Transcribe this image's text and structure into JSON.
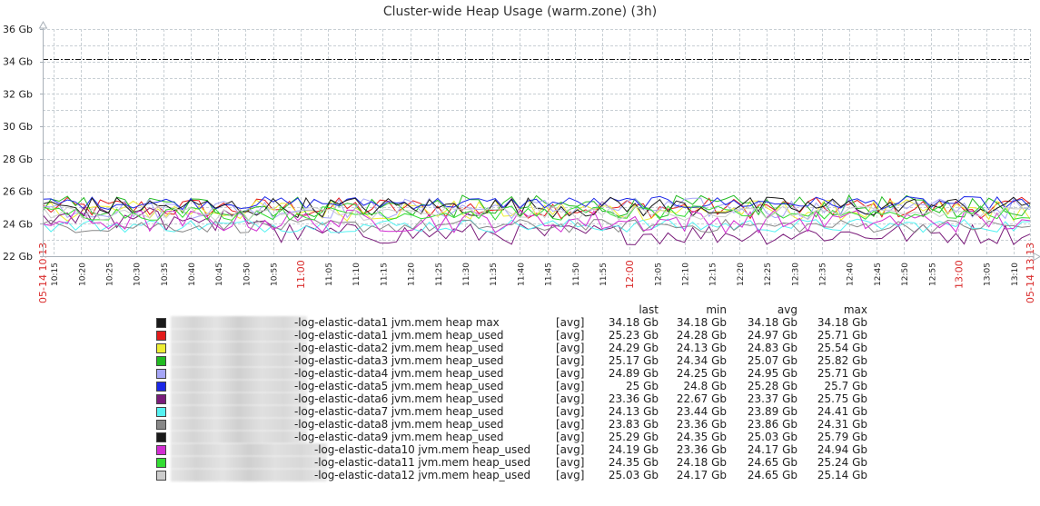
{
  "chart_data": {
    "type": "line",
    "title": "Cluster-wide Heap Usage (warm.zone) (3h)",
    "xlabel": "",
    "ylabel": "",
    "ylim": [
      22,
      36
    ],
    "y_unit": "Gb",
    "y_ticks": [
      "22 Gb",
      "24 Gb",
      "26 Gb",
      "28 Gb",
      "30 Gb",
      "32 Gb",
      "34 Gb",
      "36 Gb"
    ],
    "x_range": [
      "05-14 10:13",
      "05-14 13:13"
    ],
    "x_ticks": [
      "10:15",
      "10:20",
      "10:25",
      "10:30",
      "10:35",
      "10:40",
      "10:45",
      "10:50",
      "10:55",
      "11:00",
      "11:05",
      "11:10",
      "11:15",
      "11:20",
      "11:25",
      "11:30",
      "11:35",
      "11:40",
      "11:45",
      "11:50",
      "11:55",
      "12:00",
      "12:05",
      "12:10",
      "12:15",
      "12:20",
      "12:25",
      "12:30",
      "12:35",
      "12:40",
      "12:45",
      "12:50",
      "12:55",
      "13:00",
      "13:05",
      "13:10"
    ],
    "x_ticks_highlighted": [
      "11:00",
      "12:00",
      "13:00"
    ],
    "x_start_label": "05-14 10:13",
    "x_end_label": "05-14 13:13",
    "grid": true,
    "legend_position": "bottom",
    "legend_columns": [
      "last",
      "min",
      "avg",
      "max"
    ],
    "series": [
      {
        "name": "-log-elastic-data1 jvm.mem heap max",
        "func": "[avg]",
        "color": "#1a1a1a",
        "style": "dash-dot",
        "last": "34.18 Gb",
        "min": "34.18 Gb",
        "avg": "34.18 Gb",
        "max": "34.18 Gb",
        "values": {
          "last": 34.18,
          "min": 34.18,
          "avg": 34.18,
          "max": 34.18
        }
      },
      {
        "name": "-log-elastic-data1 jvm.mem heap_used",
        "func": "[avg]",
        "color": "#e31b1b",
        "last": "25.23 Gb",
        "min": "24.28 Gb",
        "avg": "24.97 Gb",
        "max": "25.71 Gb",
        "values": {
          "last": 25.23,
          "min": 24.28,
          "avg": 24.97,
          "max": 25.71
        }
      },
      {
        "name": "-log-elastic-data2 jvm.mem heap_used",
        "func": "[avg]",
        "color": "#eeee33",
        "last": "24.29 Gb",
        "min": "24.13 Gb",
        "avg": "24.83 Gb",
        "max": "25.54 Gb",
        "values": {
          "last": 24.29,
          "min": 24.13,
          "avg": 24.83,
          "max": 25.54
        }
      },
      {
        "name": "-log-elastic-data3 jvm.mem heap_used",
        "func": "[avg]",
        "color": "#22bb22",
        "last": "25.17 Gb",
        "min": "24.34 Gb",
        "avg": "25.07 Gb",
        "max": "25.82 Gb",
        "values": {
          "last": 25.17,
          "min": 24.34,
          "avg": 25.07,
          "max": 25.82
        }
      },
      {
        "name": "-log-elastic-data4 jvm.mem heap_used",
        "func": "[avg]",
        "color": "#a6a6f7",
        "last": "24.89 Gb",
        "min": "24.25 Gb",
        "avg": "24.95 Gb",
        "max": "25.71 Gb",
        "values": {
          "last": 24.89,
          "min": 24.25,
          "avg": 24.95,
          "max": 25.71
        }
      },
      {
        "name": "-log-elastic-data5 jvm.mem heap_used",
        "func": "[avg]",
        "color": "#1c28e8",
        "last": "25 Gb",
        "min": "24.8 Gb",
        "avg": "25.28 Gb",
        "max": "25.7 Gb",
        "values": {
          "last": 25.0,
          "min": 24.8,
          "avg": 25.28,
          "max": 25.7
        }
      },
      {
        "name": "-log-elastic-data6 jvm.mem heap_used",
        "func": "[avg]",
        "color": "#7a1c7a",
        "last": "23.36 Gb",
        "min": "22.67 Gb",
        "avg": "23.37 Gb",
        "max": "25.75 Gb",
        "values": {
          "last": 23.36,
          "min": 22.67,
          "avg": 23.37,
          "max": 25.75
        }
      },
      {
        "name": "-log-elastic-data7 jvm.mem heap_used",
        "func": "[avg]",
        "color": "#55f2f2",
        "last": "24.13 Gb",
        "min": "23.44 Gb",
        "avg": "23.89 Gb",
        "max": "24.41 Gb",
        "values": {
          "last": 24.13,
          "min": 23.44,
          "avg": 23.89,
          "max": 24.41
        }
      },
      {
        "name": "-log-elastic-data8 jvm.mem heap_used",
        "func": "[avg]",
        "color": "#888888",
        "last": "23.83 Gb",
        "min": "23.36 Gb",
        "avg": "23.86 Gb",
        "max": "24.31 Gb",
        "values": {
          "last": 23.83,
          "min": 23.36,
          "avg": 23.86,
          "max": 24.31
        }
      },
      {
        "name": "-log-elastic-data9 jvm.mem heap_used",
        "func": "[avg]",
        "color": "#1a1a1a",
        "last": "25.29 Gb",
        "min": "24.35 Gb",
        "avg": "25.03 Gb",
        "max": "25.79 Gb",
        "values": {
          "last": 25.29,
          "min": 24.35,
          "avg": 25.03,
          "max": 25.79
        }
      },
      {
        "name": "-log-elastic-data10 jvm.mem heap_used",
        "func": "[avg]",
        "color": "#d22ed2",
        "last": "24.19 Gb",
        "min": "23.36 Gb",
        "avg": "24.17 Gb",
        "max": "24.94 Gb",
        "values": {
          "last": 24.19,
          "min": 23.36,
          "avg": 24.17,
          "max": 24.94
        }
      },
      {
        "name": "-log-elastic-data11 jvm.mem heap_used",
        "func": "[avg]",
        "color": "#33dd33",
        "last": "24.35 Gb",
        "min": "24.18 Gb",
        "avg": "24.65 Gb",
        "max": "25.24 Gb",
        "values": {
          "last": 24.35,
          "min": 24.18,
          "avg": 24.65,
          "max": 25.24
        }
      },
      {
        "name": "-log-elastic-data12 jvm.mem heap_used",
        "func": "[avg]",
        "color": "#cccccc",
        "last": "25.03 Gb",
        "min": "24.17 Gb",
        "avg": "24.65 Gb",
        "max": "25.14 Gb",
        "values": {
          "last": 25.03,
          "min": 24.17,
          "avg": 24.65,
          "max": 25.14
        }
      }
    ]
  },
  "colors": {
    "grid": "#c8cfd4",
    "axis": "#a8b0b8",
    "tick_label": "#222222",
    "highlight_tick": "#d92b2b"
  }
}
